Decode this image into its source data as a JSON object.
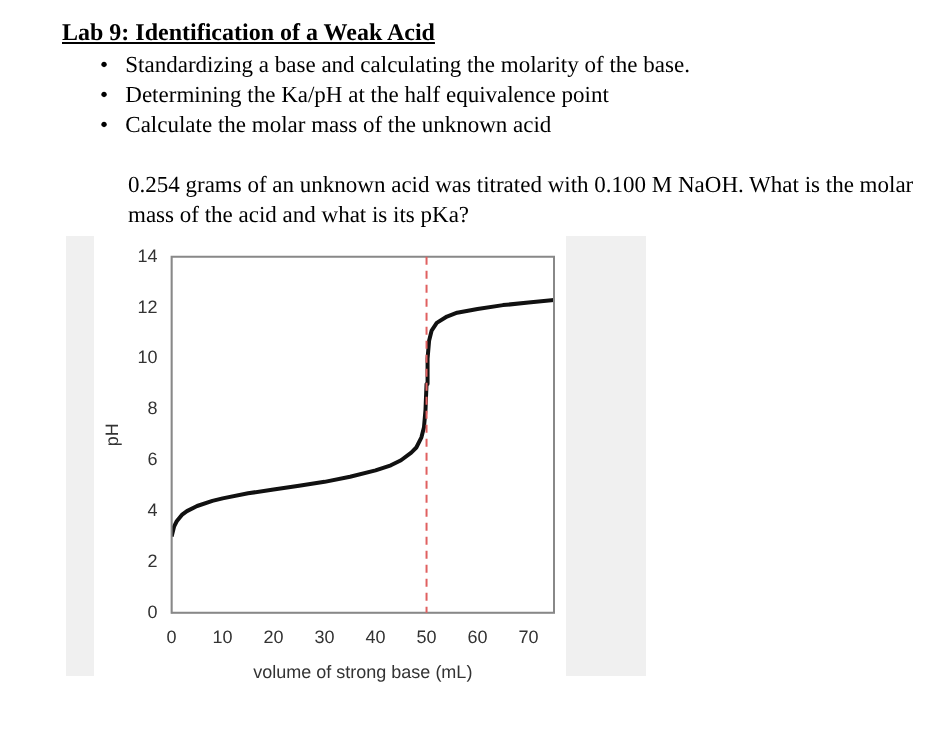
{
  "chart_data": {
    "type": "line",
    "title": "Lab 9: Identification of a Weak Acid",
    "annotations": [
      "•   Standardizing a base and calculating the molarity of the base.",
      "•   Determining the Ka/pH at the half equivalence point",
      "•   Calculate the molar mass of the unknown acid",
      "0.254 grams of an unknown acid was titrated with 0.100 M NaOH. What is the molar mass of the acid and what is its pKa?"
    ],
    "xlabel": "volume of strong base (mL)",
    "ylabel": "pH",
    "x": [
      0,
      0.5,
      1,
      2,
      3,
      5,
      8,
      10,
      15,
      20,
      25,
      30,
      35,
      40,
      43,
      45,
      47,
      48,
      49,
      49.5,
      49.8,
      50,
      50.2,
      50.5,
      51,
      52,
      54,
      56,
      60,
      65,
      70,
      75
    ],
    "series": [
      {
        "color": "#111111",
        "values": [
          3.0,
          3.4,
          3.6,
          3.85,
          4.0,
          4.2,
          4.4,
          4.5,
          4.7,
          4.85,
          5.0,
          5.15,
          5.35,
          5.6,
          5.8,
          6.0,
          6.3,
          6.5,
          6.9,
          7.3,
          8.0,
          9.0,
          10.0,
          10.7,
          11.1,
          11.4,
          11.65,
          11.8,
          11.95,
          12.1,
          12.2,
          12.3
        ]
      }
    ],
    "xlim": [
      0,
      75
    ],
    "xticks": [
      0,
      10,
      20,
      30,
      40,
      50,
      60,
      70
    ],
    "ylim": [
      0,
      14
    ],
    "yticks": [
      0,
      2,
      4,
      6,
      8,
      10,
      12,
      14
    ],
    "ref_lines": [
      {
        "axis": "x",
        "value": 50,
        "color": "#e06060",
        "line_style": "dashed"
      }
    ],
    "grid": false,
    "legend": false,
    "marker": "none",
    "line_style": "solid"
  }
}
